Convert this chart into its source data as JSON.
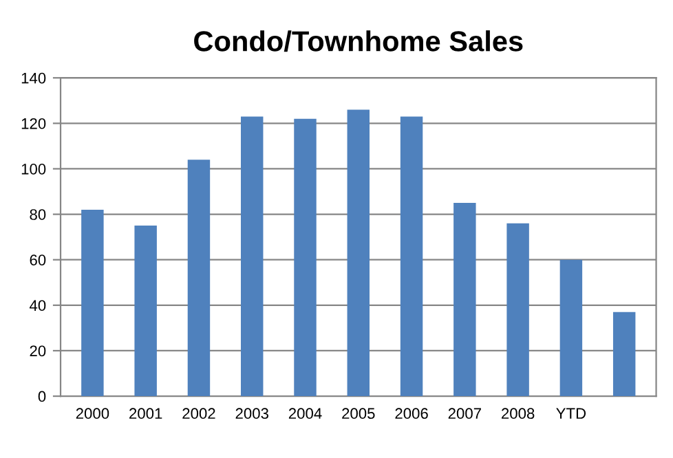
{
  "chart_data": {
    "type": "bar",
    "title": "Condo/Townhome Sales",
    "categories": [
      "2000",
      "2001",
      "2002",
      "2003",
      "2004",
      "2005",
      "2006",
      "2007",
      "2008",
      "YTD",
      null
    ],
    "values": [
      82,
      75,
      104,
      123,
      122,
      126,
      123,
      85,
      76,
      60,
      37
    ],
    "color": "#4f81bd",
    "ylim": [
      0,
      140
    ],
    "yticks": [
      0,
      20,
      40,
      60,
      80,
      100,
      120,
      140
    ],
    "grid": "y",
    "legend": false
  }
}
